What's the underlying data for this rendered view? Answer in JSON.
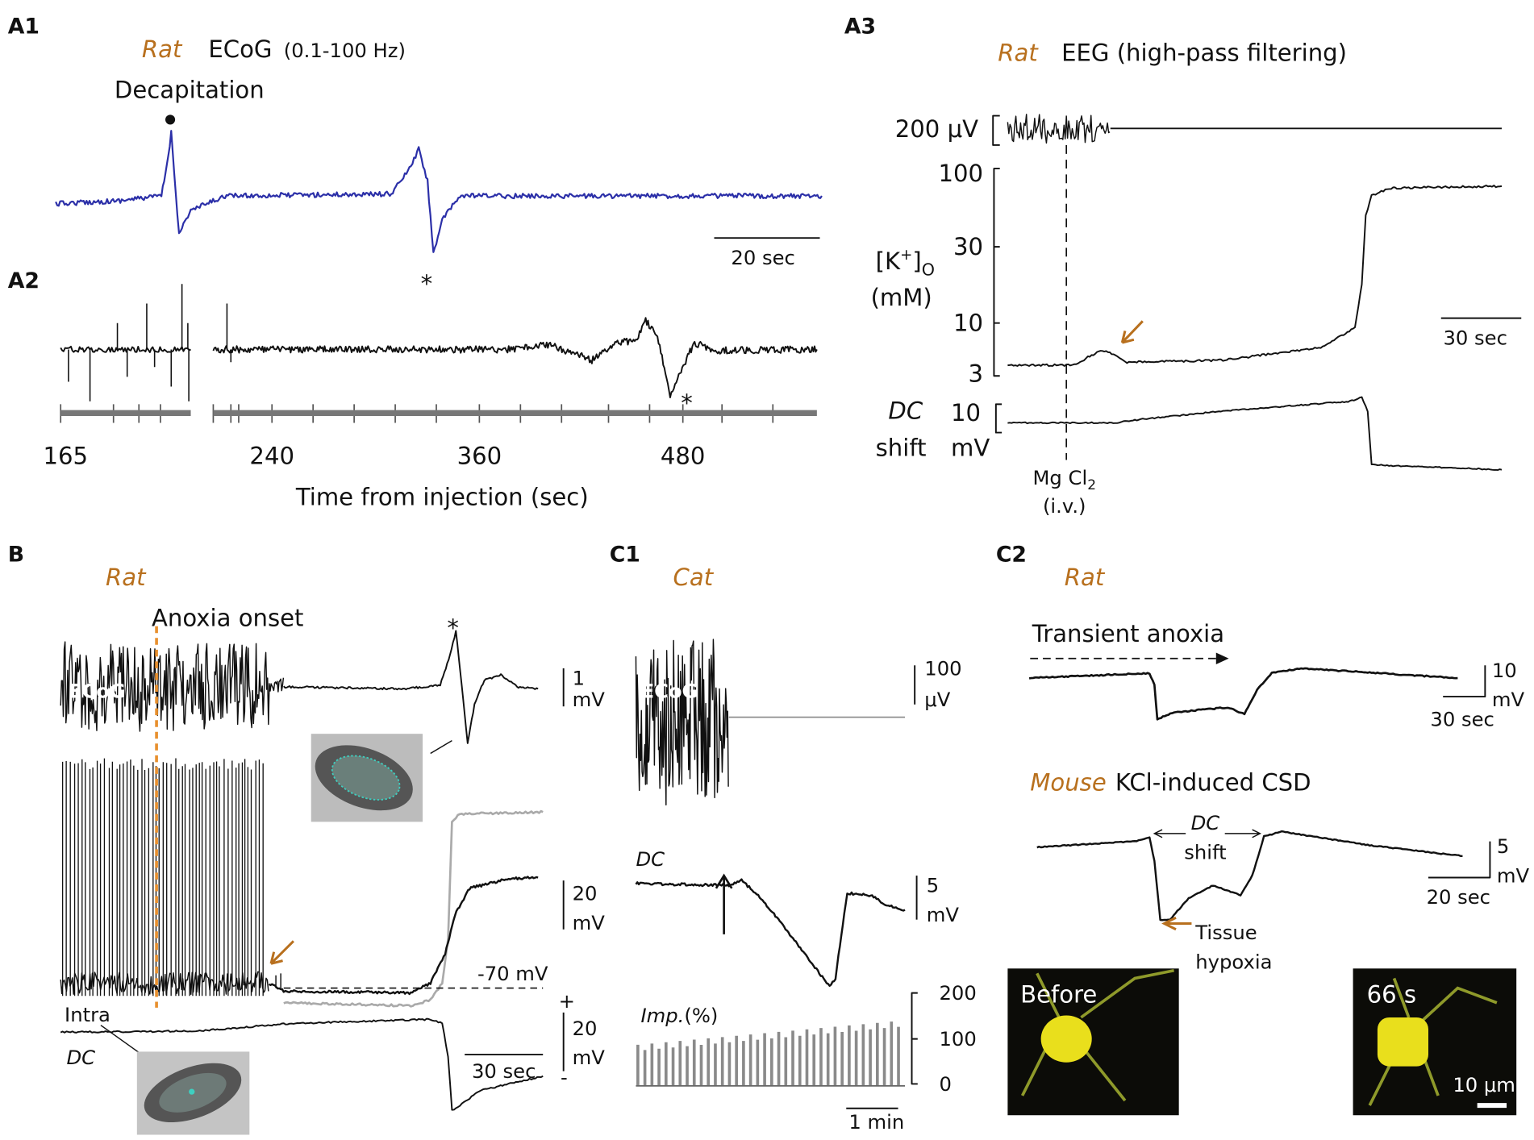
{
  "figure": {
    "A1": {
      "label": "A1",
      "species": "Rat",
      "recording": "ECoG",
      "filter": "(0.1-100 Hz)",
      "event": "Decapitation",
      "marker": "*",
      "time_scale": "20 sec"
    },
    "A2": {
      "label": "A2",
      "marker": "*",
      "ticks": [
        165,
        240,
        360,
        480
      ],
      "x_label": "Time from injection (sec)"
    },
    "A3": {
      "label": "A3",
      "species": "Rat",
      "recording": "EEG (high-pass filtering)",
      "eeg_scale": "200 μV",
      "k_ticks": [
        100,
        30,
        10,
        3
      ],
      "k_label": [
        "[K",
        "+",
        "]",
        "O"
      ],
      "k_unit": "(mM)",
      "time_scale": "30 sec",
      "dc_label": "DC",
      "dc_label2": "shift",
      "dc_scale": 10,
      "dc_unit": "mV",
      "drug": [
        "Mg Cl",
        "2"
      ],
      "route": "(i.v.)"
    },
    "B": {
      "label": "B",
      "species": "Rat",
      "event": "Anoxia onset",
      "marker": "*",
      "ecog": "ECoG",
      "ecog_scale": [
        1,
        "mV"
      ],
      "intra_scale": [
        20,
        "mV"
      ],
      "rest_potential": "-70 mV",
      "intra": "Intra",
      "dc": "DC",
      "dc_scale": [
        20,
        "mV"
      ],
      "plus": "+",
      "minus": "-",
      "time_scale": "30 sec"
    },
    "C1": {
      "label": "C1",
      "species": "Cat",
      "ecog": "ECoG",
      "ecog_scale": [
        100,
        "μV"
      ],
      "dc": "DC",
      "dc_scale": [
        5,
        "mV"
      ],
      "imp_label": [
        "Imp.",
        "(%)"
      ],
      "imp_ticks": [
        200,
        100,
        0
      ],
      "time_scale": "1 min"
    },
    "C2": {
      "label": "C2",
      "species": "Rat",
      "event": "Transient anoxia",
      "scale1": [
        10,
        "mV"
      ],
      "time1": "30 sec",
      "species2": "Mouse",
      "event2": "KCl-induced CSD",
      "dc": "DC",
      "shift": "shift",
      "scale2": [
        5,
        "mV"
      ],
      "time2": "20 sec",
      "hypoxia": [
        "Tissue",
        "hypoxia"
      ],
      "image1": "Before",
      "image2": "66 s",
      "image_scale": "10 μm"
    }
  }
}
